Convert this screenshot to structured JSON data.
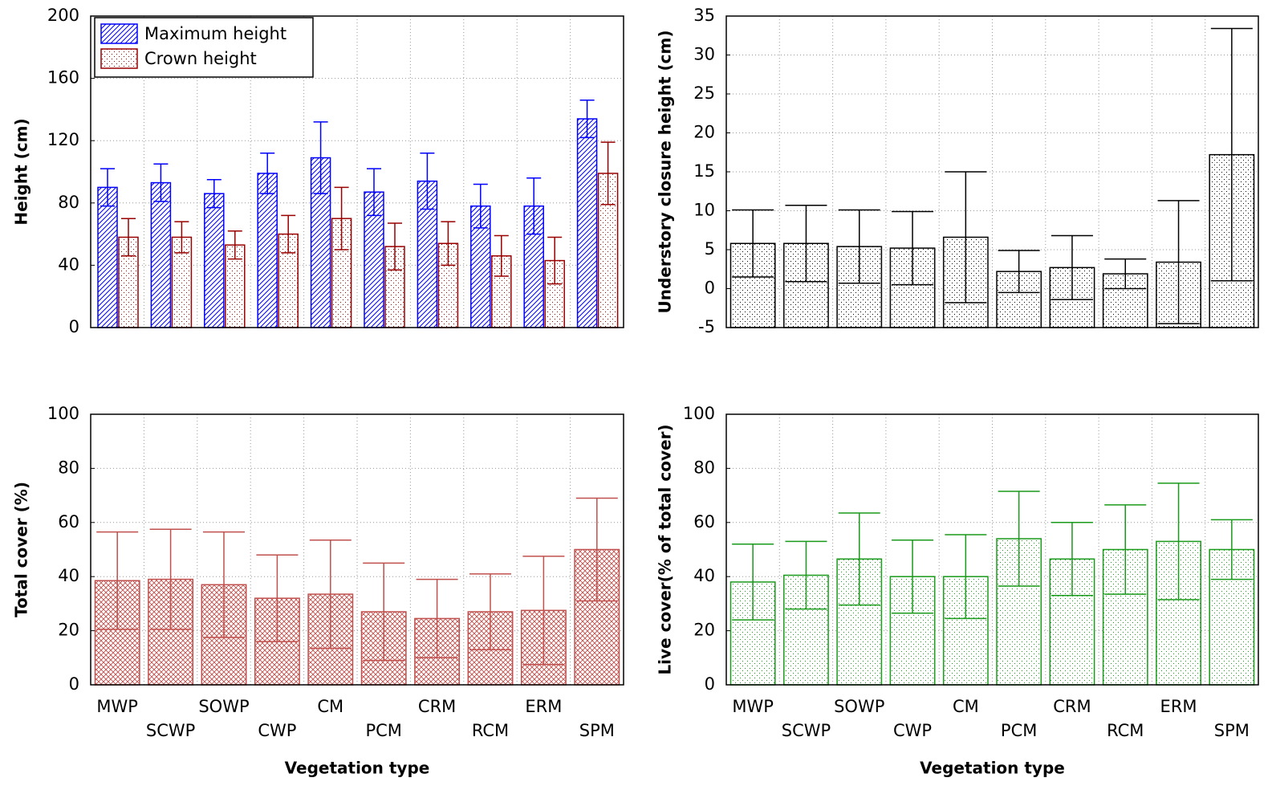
{
  "chart_data": [
    {
      "type": "bar",
      "ylabel": "Height (cm)",
      "ylim": [
        0,
        200
      ],
      "yticks": [
        0,
        40,
        80,
        120,
        160,
        200
      ],
      "grid": true,
      "legend": "upper left",
      "series": [
        {
          "name": "Maximum height",
          "color": "#0000ff",
          "values": [
            90,
            93,
            86,
            99,
            109,
            87,
            94,
            78,
            78,
            134
          ],
          "errors": [
            12,
            12,
            9,
            13,
            23,
            15,
            18,
            14,
            18,
            12
          ]
        },
        {
          "name": "Crown height",
          "color": "#990000",
          "values": [
            58,
            58,
            53,
            60,
            70,
            52,
            54,
            46,
            43,
            99
          ],
          "errors": [
            12,
            10,
            9,
            12,
            20,
            15,
            14,
            13,
            15,
            20
          ]
        }
      ]
    },
    {
      "type": "bar",
      "ylabel": "Understory closure height (cm)",
      "ylim": [
        -5,
        35
      ],
      "yticks": [
        -5,
        0,
        5,
        10,
        15,
        20,
        25,
        30,
        35
      ],
      "grid": true,
      "color": "#000000",
      "values": [
        5.8,
        5.8,
        5.4,
        5.2,
        6.6,
        2.2,
        2.7,
        1.9,
        3.4,
        17.2
      ],
      "errors": [
        4.3,
        4.9,
        4.7,
        4.7,
        8.4,
        2.7,
        4.1,
        1.9,
        7.9,
        16.2
      ]
    },
    {
      "type": "bar",
      "ylabel": "Total cover (%)",
      "xlabel": "Vegetation type",
      "ylim": [
        0,
        100
      ],
      "yticks": [
        0,
        20,
        40,
        60,
        80,
        100
      ],
      "grid": true,
      "color": "#c0504d",
      "categories": [
        "MWP",
        "SCWP",
        "SOWP",
        "CWP",
        "CM",
        "PCM",
        "CRM",
        "RCM",
        "ERM",
        "SPM"
      ],
      "values": [
        38.5,
        39,
        37,
        32,
        33.5,
        27,
        24.5,
        27,
        27.5,
        50
      ],
      "errors": [
        18,
        18.5,
        19.5,
        16,
        20,
        18,
        14.5,
        14,
        20,
        19
      ]
    },
    {
      "type": "bar",
      "ylabel": "Live cover(% of total cover)",
      "xlabel": "Vegetation type",
      "ylim": [
        0,
        100
      ],
      "yticks": [
        0,
        20,
        40,
        60,
        80,
        100
      ],
      "grid": true,
      "color": "#1a9a1a",
      "categories": [
        "MWP",
        "SCWP",
        "SOWP",
        "CWP",
        "CM",
        "PCM",
        "CRM",
        "RCM",
        "ERM",
        "SPM"
      ],
      "values": [
        38,
        40.5,
        46.5,
        40,
        40,
        54,
        46.5,
        50,
        53,
        50
      ],
      "errors": [
        14,
        12.5,
        17,
        13.5,
        15.5,
        17.5,
        13.5,
        16.5,
        21.5,
        11
      ]
    }
  ]
}
